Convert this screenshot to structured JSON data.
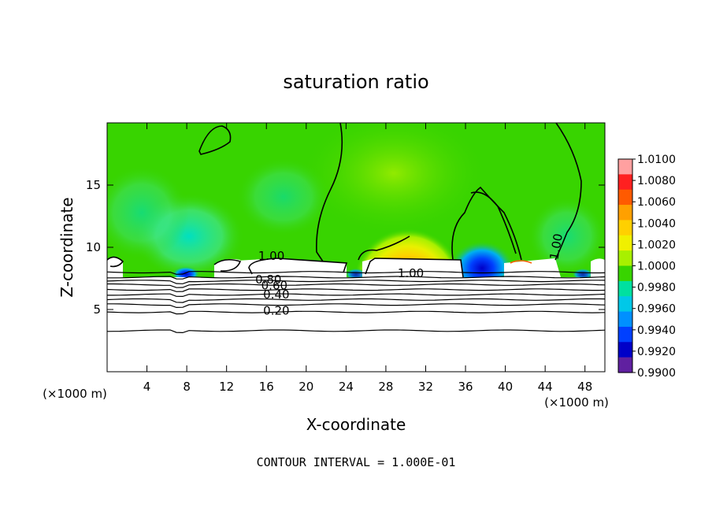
{
  "chart_data": {
    "type": "heatmap",
    "title": "saturation ratio",
    "xlabel": "X-coordinate",
    "ylabel": "Z-coordinate",
    "x_unit_left": "(×1000 m)",
    "x_unit_right": "(×1000 m)",
    "xlim": [
      0,
      50
    ],
    "ylim": [
      0,
      20
    ],
    "xticks": [
      4,
      8,
      12,
      16,
      20,
      24,
      28,
      32,
      36,
      40,
      44,
      48
    ],
    "yticks": [
      5,
      10,
      15
    ],
    "colorbar": {
      "min": 0.99,
      "max": 1.01,
      "ticks": [
        "1.0100",
        "1.0080",
        "1.0060",
        "1.0040",
        "1.0020",
        "1.0000",
        "0.9980",
        "0.9960",
        "0.9940",
        "0.9920",
        "0.9900"
      ],
      "colors": [
        "#ffa0a0",
        "#ff2020",
        "#ff5a00",
        "#ffa000",
        "#ffd000",
        "#f0f000",
        "#a8f000",
        "#38d400",
        "#00e0a0",
        "#00c8e8",
        "#0090ff",
        "#0040ff",
        "#0000c8",
        "#6020a0"
      ]
    },
    "contour_labels": [
      {
        "text": "1.00",
        "x": 16.5,
        "y": 9.0
      },
      {
        "text": "1.00",
        "x": 30.5,
        "y": 7.6
      },
      {
        "text": "1.00",
        "x": 45.5,
        "y": 10.0
      },
      {
        "text": "0.80",
        "x": 16.2,
        "y": 7.1
      },
      {
        "text": "0.60",
        "x": 16.8,
        "y": 6.6
      },
      {
        "text": "0.40",
        "x": 17.0,
        "y": 5.9
      },
      {
        "text": "0.20",
        "x": 17.0,
        "y": 4.6
      }
    ],
    "contour_lines_z": [
      8.0,
      7.6,
      7.3,
      7.0,
      6.6,
      6.2,
      5.8,
      5.4,
      4.8,
      3.3
    ],
    "grid": false,
    "legend": "colorbar-right"
  },
  "footer": {
    "interval_text": "CONTOUR INTERVAL = 1.000E-01"
  }
}
